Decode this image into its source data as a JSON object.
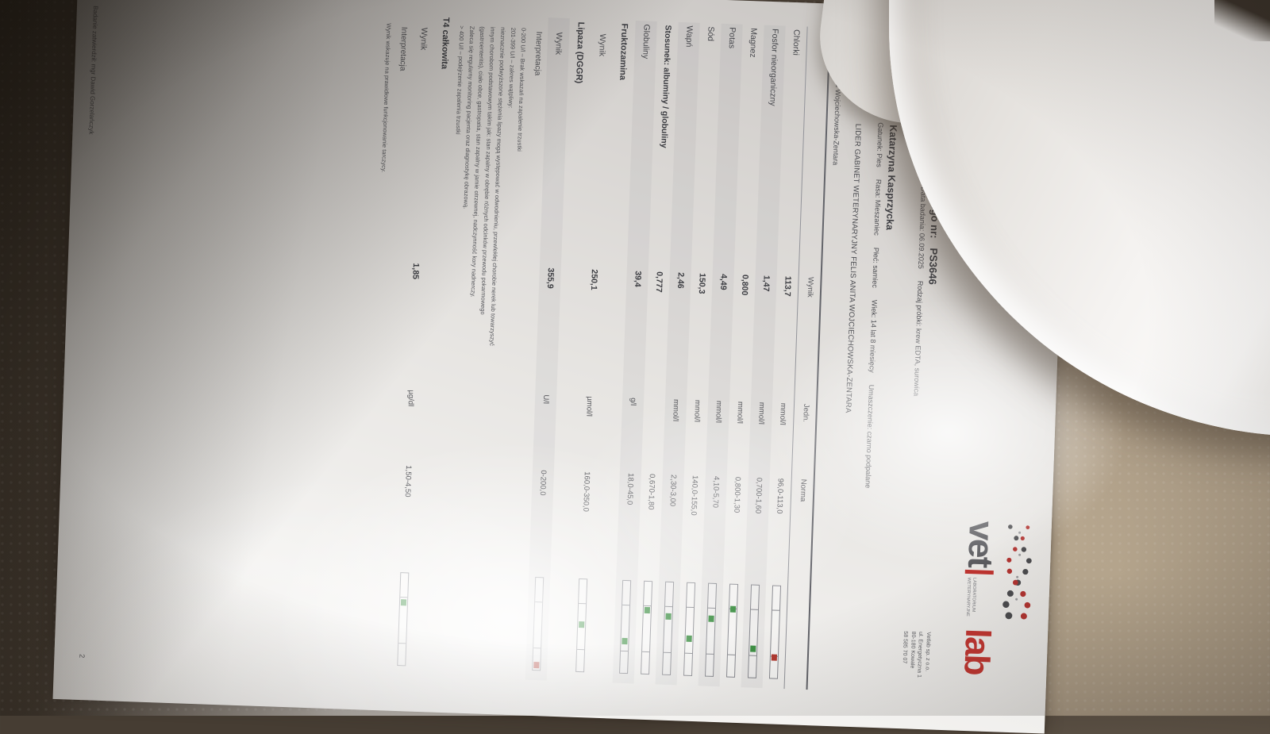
{
  "colors": {
    "ok": "#3f9045",
    "alert": "#b23a31",
    "logo_gray": "#5a5a5e",
    "logo_red": "#c23732"
  },
  "logo": {
    "vet": "vet",
    "lab": "lab",
    "tagline": "LABORATORIUM WETERYNARYJNE",
    "address_lines": [
      "Vetlab sp. z o.o.",
      "ul. Energetyczna 1",
      "80-180 Kowale",
      "58 585 70 07"
    ]
  },
  "header": {
    "title_fragment": "dania laboratoryjnego nr:",
    "report_no": "PS3646",
    "meta_line": "ecenia: 05.09.2025      Data badania: 06.09.2025      Rodzaj próbki: krew EDTA, surowica",
    "client_fragment": "nt:",
    "client_name": "Katarzyna Kasprzycka",
    "patient_line": "rry      Gatunek: Pies      Rasa: Mieszaniec      Płeć: samiec      Wiek: 14 lat 8 miesięcy      Umaszczenie: czarno podpalane",
    "clinic_line": "LIDER GABINET WETERYNARYJNY FELIS ANITA WOJCIECHOWSKA-ZENTARA",
    "vet_line": "a Wojciechowska-Zentara"
  },
  "table": {
    "col_headers": {
      "wynik": "Wynik",
      "jedn": "Jedn.",
      "norma": "Norma"
    },
    "rows": [
      {
        "type": "test",
        "name": "Chlorki",
        "wynik": "113,7",
        "jedn": "mmol/l",
        "norma": "96,0-113,0",
        "marker": {
          "state": "high",
          "pos": 6
        }
      },
      {
        "type": "test",
        "name": "Fosfor nieorganiczny",
        "wynik": "1,47",
        "jedn": "mmol/l",
        "norma": "0,700-1,60",
        "marker": {
          "state": "ok",
          "pos": 86
        }
      },
      {
        "type": "test",
        "name": "Magnez",
        "wynik": "0,800",
        "jedn": "mmol/l",
        "norma": "0,800-1,30",
        "marker": {
          "state": "ok",
          "pos": 2
        }
      },
      {
        "type": "test",
        "name": "Potas",
        "wynik": "4,49",
        "jedn": "mmol/l",
        "norma": "4,10-5,70",
        "marker": {
          "state": "ok",
          "pos": 24
        }
      },
      {
        "type": "test",
        "name": "Sód",
        "wynik": "150,3",
        "jedn": "mmol/l",
        "norma": "140,0-155,0",
        "marker": {
          "state": "ok",
          "pos": 69
        }
      },
      {
        "type": "test",
        "name": "Wapń",
        "wynik": "2,46",
        "jedn": "mmol/l",
        "norma": "2,30-3,00",
        "marker": {
          "state": "ok",
          "pos": 23
        }
      },
      {
        "type": "test",
        "bold": true,
        "name": "Stosunek: albuminy / globuliny",
        "wynik": "0,777",
        "jedn": "",
        "norma": "0,670-1,80",
        "marker": {
          "state": "ok",
          "pos": 10
        }
      },
      {
        "type": "test",
        "name": "Globuliny",
        "wynik": "39,4",
        "jedn": "g/l",
        "norma": "18,0-45,0",
        "marker": {
          "state": "ok",
          "pos": 79
        }
      },
      {
        "type": "section",
        "name": "Fruktozamina"
      },
      {
        "type": "test",
        "indent": true,
        "name": "Wynik",
        "wynik": "250,1",
        "jedn": "µmol/l",
        "norma": "160,0-350,0",
        "marker": {
          "state": "ok",
          "pos": 47
        }
      },
      {
        "type": "section",
        "name": "Lipaza (DGGR)"
      },
      {
        "type": "test",
        "indent": true,
        "name": "Wynik",
        "wynik": "355,9",
        "jedn": "U/l",
        "norma": "0-200,0",
        "marker": {
          "state": "high",
          "pos": 78
        }
      },
      {
        "type": "label",
        "name": "Interpretacja"
      },
      {
        "type": "note",
        "text": "0-200 U/l – Brak wskazań na zapalenie trzustki"
      },
      {
        "type": "note",
        "text": "201-399 U/l – zakres wątpliwy:"
      },
      {
        "type": "note",
        "text": "nieznacznie podwyższone stężenia lipazy mogą występować w odwodnieniu, przewlekłej chorobie nerek lub towarzyszyć"
      },
      {
        "type": "note",
        "text": "innym chorobom podstawowym takim jak: stan zapalny w obrębie różnych odcinków przewodu pokarmowego"
      },
      {
        "type": "note",
        "text": "(gastroenteritis), ciało obce, gastropatia, stan zapalny w jamie otrzewnej, nadczynność kory nadnerczy."
      },
      {
        "type": "note",
        "text": "Zaleca się regularny monitoring pacjenta oraz diagnostykę obrazową."
      },
      {
        "type": "note",
        "text": "> 400 U/l – podejrzenie zapalenia trzustki"
      },
      {
        "type": "section",
        "name": "T4 całkowita"
      },
      {
        "type": "test",
        "indent": true,
        "name": "Wynik",
        "wynik": "1,85",
        "jedn": "µg/dl",
        "norma": "1,50-4,50",
        "marker": {
          "state": "ok",
          "pos": 12
        }
      },
      {
        "type": "label",
        "name": "Interpretacja"
      },
      {
        "type": "note",
        "text": "Wynik wskazuje na prawidłowe funkcjonowanie tarczycy."
      }
    ]
  },
  "footer": {
    "signed": "Badanie zatwierdził: mgr Dawid Gorzelańczyk",
    "page": "2"
  }
}
